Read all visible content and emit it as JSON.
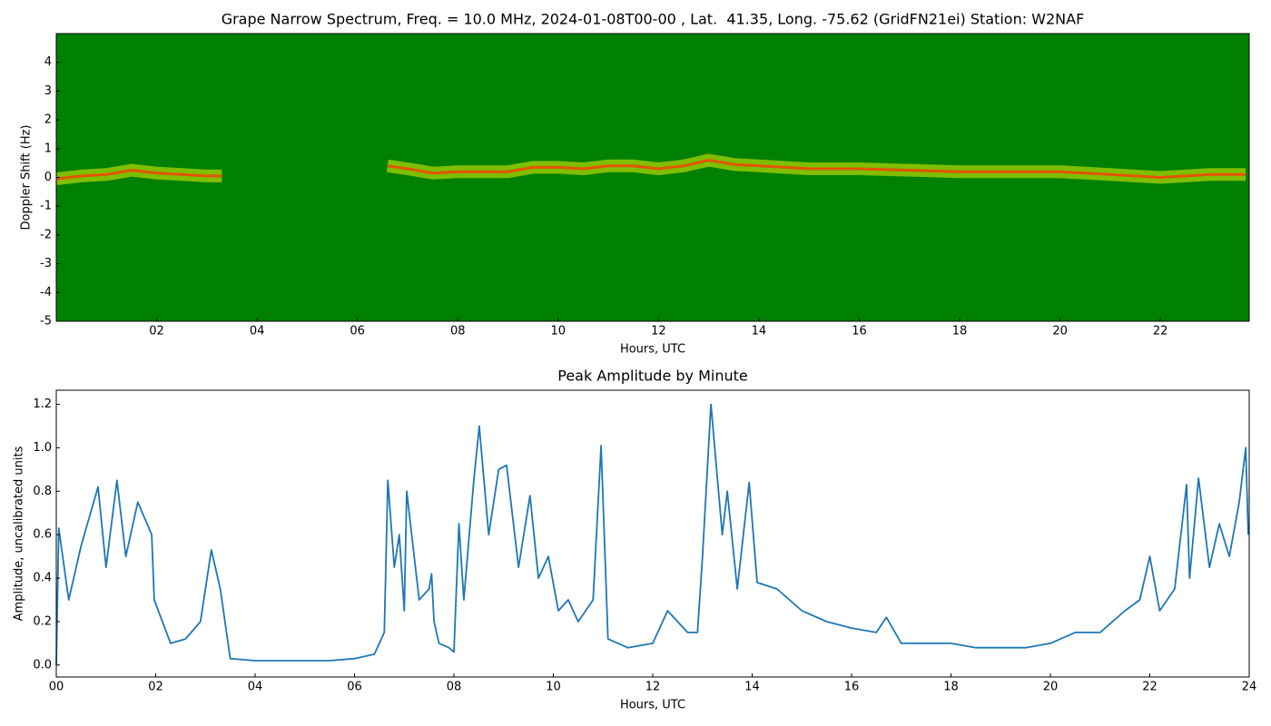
{
  "chart_data": [
    {
      "type": "spectrogram",
      "title": "Grape Narrow Spectrum, Freq. = 10.0 MHz, 2024-01-08T00-00 , Lat.  41.35, Long. -75.62 (GridFN21ei) Station: W2NAF",
      "x_label": "Hours, UTC",
      "y_label": "Doppler Shift (Hz)",
      "background": "#008000",
      "glow_color": "#e8f000",
      "color": "#ff3a00",
      "x": [
        0,
        0.5,
        1.0,
        1.5,
        2.0,
        2.5,
        3.0,
        3.3,
        5.0,
        6.6,
        7.0,
        7.5,
        8.0,
        8.5,
        9.0,
        9.5,
        10.0,
        10.5,
        11.0,
        11.5,
        12.0,
        12.5,
        13.0,
        13.5,
        14.0,
        15.0,
        16.0,
        17.0,
        18.0,
        19.0,
        20.0,
        21.0,
        22.0,
        23.0,
        23.7
      ],
      "values": [
        -0.05,
        0.05,
        0.1,
        0.25,
        0.15,
        0.1,
        0.05,
        0.05,
        null,
        0.4,
        0.3,
        0.15,
        0.2,
        0.2,
        0.2,
        0.35,
        0.35,
        0.3,
        0.4,
        0.4,
        0.3,
        0.4,
        0.6,
        0.45,
        0.4,
        0.3,
        0.3,
        0.25,
        0.2,
        0.2,
        0.2,
        0.1,
        0.0,
        0.1,
        0.1
      ],
      "xlim": [
        0,
        23.77
      ],
      "ylim": [
        -5,
        5
      ],
      "xticks": [
        {
          "value": 2,
          "label": "02"
        },
        {
          "value": 4,
          "label": "04"
        },
        {
          "value": 6,
          "label": "06"
        },
        {
          "value": 8,
          "label": "08"
        },
        {
          "value": 10,
          "label": "10"
        },
        {
          "value": 12,
          "label": "12"
        },
        {
          "value": 14,
          "label": "14"
        },
        {
          "value": 16,
          "label": "16"
        },
        {
          "value": 18,
          "label": "18"
        },
        {
          "value": 20,
          "label": "20"
        },
        {
          "value": 22,
          "label": "22"
        }
      ],
      "yticks": [
        -5,
        -4,
        -3,
        -2,
        -1,
        0,
        1,
        2,
        3,
        4
      ]
    },
    {
      "type": "line",
      "title": "Peak Amplitude by Minute",
      "x_label": "Hours, UTC",
      "y_label": "Amplitude, uncalibrated units",
      "color": "#1f77b4",
      "x": [
        0,
        0.05,
        0.25,
        0.5,
        0.84,
        1.0,
        1.22,
        1.4,
        1.64,
        1.92,
        1.97,
        2.3,
        2.6,
        2.9,
        3.12,
        3.3,
        3.5,
        4.0,
        4.5,
        5.0,
        5.5,
        6.0,
        6.4,
        6.6,
        6.67,
        6.8,
        6.9,
        7.0,
        7.05,
        7.3,
        7.5,
        7.55,
        7.6,
        7.7,
        7.9,
        8.0,
        8.1,
        8.2,
        8.4,
        8.51,
        8.7,
        8.9,
        9.06,
        9.3,
        9.53,
        9.7,
        9.9,
        10.1,
        10.3,
        10.5,
        10.8,
        10.96,
        11.1,
        11.5,
        12.0,
        12.3,
        12.7,
        12.9,
        13.0,
        13.17,
        13.4,
        13.5,
        13.7,
        13.94,
        14.1,
        14.5,
        15.0,
        15.5,
        16.0,
        16.5,
        16.7,
        17.0,
        17.5,
        18.0,
        18.5,
        19.0,
        19.5,
        20.0,
        20.5,
        21.0,
        21.5,
        21.8,
        22.0,
        22.2,
        22.5,
        22.74,
        22.8,
        22.98,
        23.2,
        23.4,
        23.6,
        23.8,
        23.93,
        23.98
      ],
      "values": [
        0.0,
        0.63,
        0.3,
        0.55,
        0.82,
        0.45,
        0.85,
        0.5,
        0.75,
        0.6,
        0.3,
        0.1,
        0.12,
        0.2,
        0.53,
        0.35,
        0.03,
        0.02,
        0.02,
        0.02,
        0.02,
        0.03,
        0.05,
        0.15,
        0.85,
        0.45,
        0.6,
        0.25,
        0.8,
        0.3,
        0.35,
        0.42,
        0.2,
        0.1,
        0.08,
        0.06,
        0.65,
        0.3,
        0.85,
        1.1,
        0.6,
        0.9,
        0.92,
        0.45,
        0.78,
        0.4,
        0.5,
        0.25,
        0.3,
        0.2,
        0.3,
        1.01,
        0.12,
        0.08,
        0.1,
        0.25,
        0.15,
        0.15,
        0.5,
        1.2,
        0.6,
        0.8,
        0.35,
        0.84,
        0.38,
        0.35,
        0.25,
        0.2,
        0.17,
        0.15,
        0.22,
        0.1,
        0.1,
        0.1,
        0.08,
        0.08,
        0.08,
        0.1,
        0.15,
        0.15,
        0.25,
        0.3,
        0.5,
        0.25,
        0.35,
        0.83,
        0.4,
        0.86,
        0.45,
        0.65,
        0.5,
        0.75,
        1.0,
        0.6
      ],
      "xlim": [
        0,
        24
      ],
      "ylim": [
        -0.055,
        1.265
      ],
      "xticks": [
        {
          "value": 0,
          "label": "00"
        },
        {
          "value": 2,
          "label": "02"
        },
        {
          "value": 4,
          "label": "04"
        },
        {
          "value": 6,
          "label": "06"
        },
        {
          "value": 8,
          "label": "08"
        },
        {
          "value": 10,
          "label": "10"
        },
        {
          "value": 12,
          "label": "12"
        },
        {
          "value": 14,
          "label": "14"
        },
        {
          "value": 16,
          "label": "16"
        },
        {
          "value": 18,
          "label": "18"
        },
        {
          "value": 20,
          "label": "20"
        },
        {
          "value": 22,
          "label": "22"
        },
        {
          "value": 24,
          "label": "24"
        }
      ],
      "yticks": [
        {
          "value": 0,
          "label": "0.0"
        },
        0.2,
        0.4,
        0.6,
        0.8,
        {
          "value": 1,
          "label": "1.0"
        },
        1.2
      ]
    }
  ]
}
